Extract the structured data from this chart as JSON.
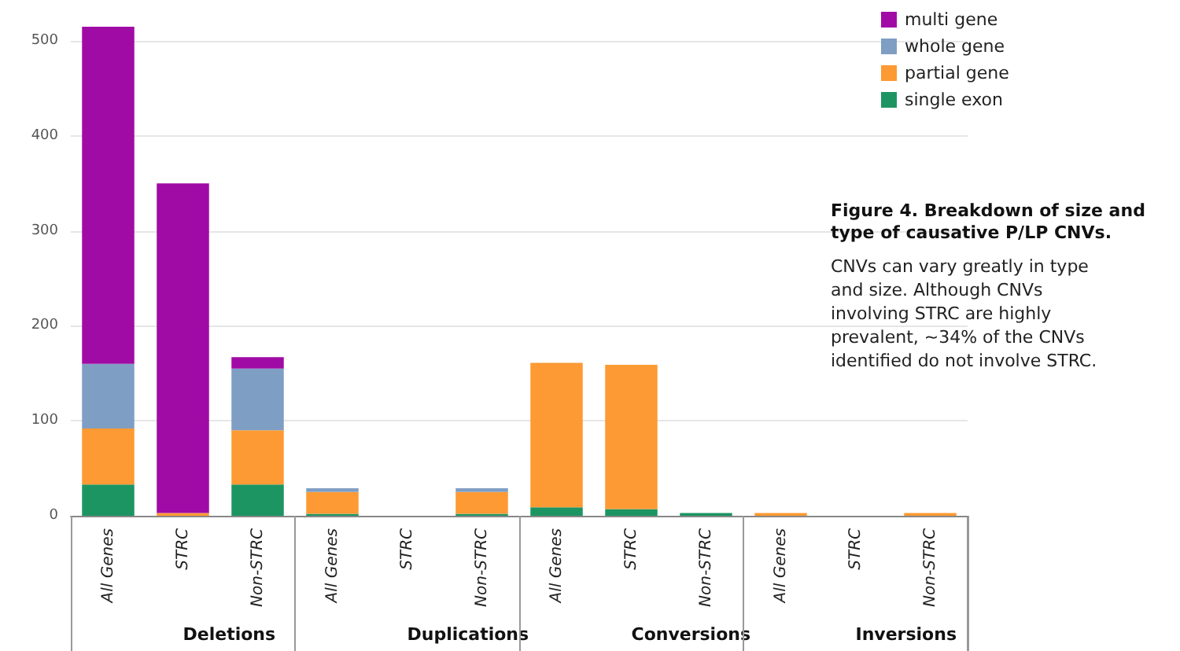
{
  "chart_data": {
    "type": "bar",
    "stacked": true,
    "title": "Figure 4. Breakdown of size and type of causative P/LP CNVs.",
    "annotations": [
      "CNVs can vary greatly in type and size. Although CNVs involving STRC are highly prevalent, ~34% of the CNVs identified do not involve STRC.",
      "Deletions",
      "Duplications",
      "Conversions",
      "Inversions"
    ],
    "categories": [
      "All Genes",
      "STRC",
      "Non-STRC",
      "All Genes",
      "STRC",
      "Non-STRC",
      "All Genes",
      "STRC",
      "Non-STRC",
      "All Genes",
      "STRC",
      "Non-STRC"
    ],
    "series": [
      {
        "name": "single exon",
        "color": "#1d9563",
        "values": [
          33,
          null,
          33,
          2,
          null,
          2,
          9,
          7,
          3,
          null,
          null,
          null
        ]
      },
      {
        "name": "partial gene",
        "color": "#fd9a33",
        "values": [
          59,
          3,
          57,
          23,
          null,
          23,
          152,
          152,
          null,
          3,
          null,
          3
        ]
      },
      {
        "name": "whole gene",
        "color": "#7f9ec4",
        "values": [
          68,
          null,
          65,
          4,
          null,
          4,
          null,
          null,
          null,
          null,
          null,
          null
        ]
      },
      {
        "name": "multi gene",
        "color": "#a10ba5",
        "values": [
          355,
          347,
          12,
          null,
          null,
          null,
          null,
          null,
          null,
          null,
          null,
          null
        ]
      }
    ],
    "ylim": [
      0,
      530
    ],
    "yticks": [
      0,
      100,
      200,
      300,
      400,
      500
    ],
    "grid": "y",
    "legend": "top right"
  }
}
